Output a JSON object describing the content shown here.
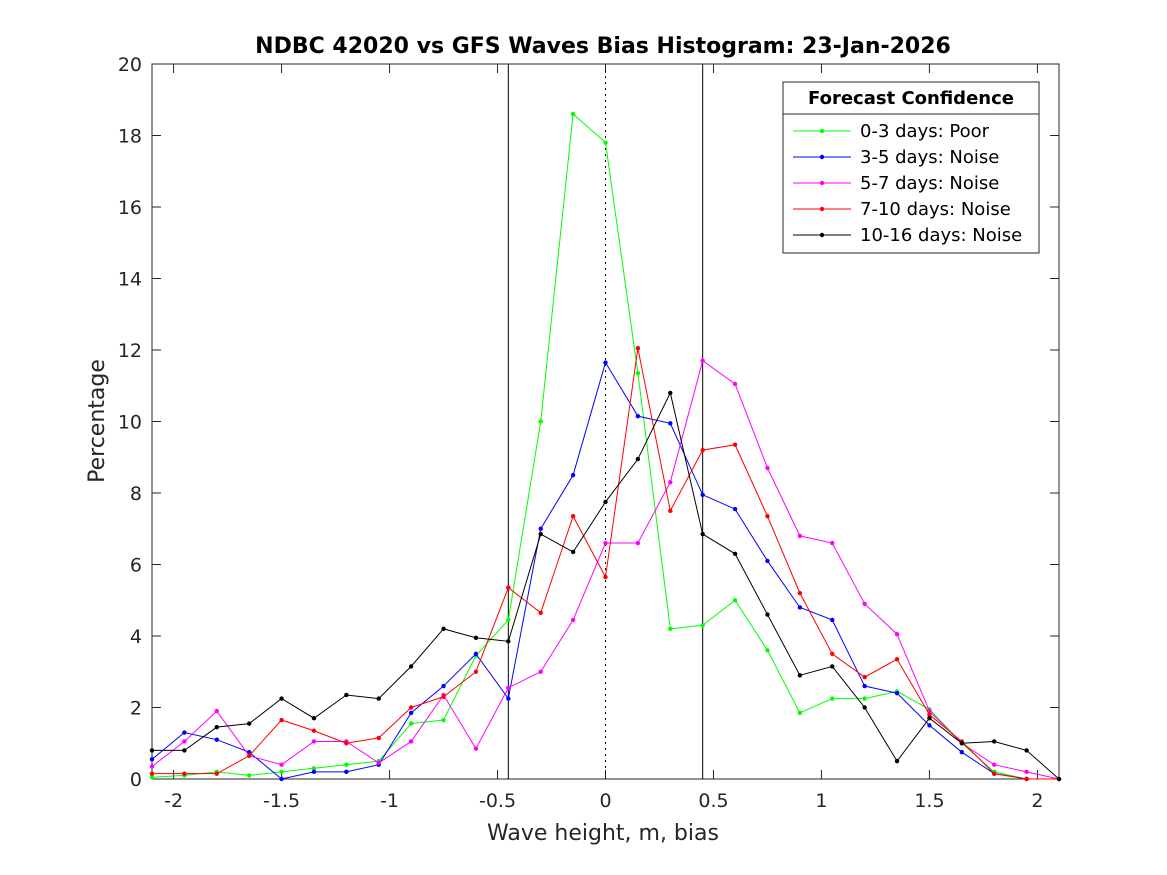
{
  "chart_data": {
    "type": "line",
    "title": "NDBC 42020 vs GFS Waves Bias Histogram: 23-Jan-2026",
    "xlabel": "Wave height, m, bias",
    "ylabel": "Percentage",
    "xlim": [
      -2.1,
      2.1
    ],
    "ylim": [
      0,
      20
    ],
    "xticks": [
      -2,
      -1.5,
      -1,
      -0.5,
      0,
      0.5,
      1,
      1.5,
      2
    ],
    "xtick_labels": [
      "-2",
      "-1.5",
      "-1",
      "-0.5",
      "0",
      "0.5",
      "1",
      "1.5",
      "2"
    ],
    "yticks": [
      0,
      2,
      4,
      6,
      8,
      10,
      12,
      14,
      16,
      18,
      20
    ],
    "ytick_labels": [
      "0",
      "2",
      "4",
      "6",
      "8",
      "10",
      "12",
      "14",
      "16",
      "18",
      "20"
    ],
    "vertical_lines": [
      {
        "x": -0.45,
        "style": "solid"
      },
      {
        "x": 0,
        "style": "dotted"
      },
      {
        "x": 0.45,
        "style": "solid"
      }
    ],
    "legend": {
      "title": "Forecast Confidence",
      "position": "top-right"
    },
    "x": [
      -2.1,
      -1.95,
      -1.8,
      -1.65,
      -1.5,
      -1.35,
      -1.2,
      -1.05,
      -0.9,
      -0.75,
      -0.6,
      -0.45,
      -0.3,
      -0.15,
      0,
      0.15,
      0.3,
      0.45,
      0.6,
      0.75,
      0.9,
      1.05,
      1.2,
      1.35,
      1.5,
      1.65,
      1.8,
      1.95,
      2.1
    ],
    "series": [
      {
        "name": "0-3 days: Poor",
        "color": "#00ff00",
        "values": [
          0.05,
          0.1,
          0.2,
          0.1,
          0.2,
          0.3,
          0.4,
          0.5,
          1.55,
          1.65,
          3.45,
          4.45,
          10.0,
          18.6,
          17.8,
          11.35,
          4.2,
          4.3,
          5.0,
          3.6,
          1.85,
          2.25,
          2.25,
          2.45,
          1.95,
          1.0,
          0.2,
          0.0,
          0.0
        ]
      },
      {
        "name": "3-5 days: Noise",
        "color": "#0000ff",
        "values": [
          0.55,
          1.3,
          1.1,
          0.75,
          0.0,
          0.2,
          0.2,
          0.4,
          1.85,
          2.6,
          3.5,
          2.25,
          7.0,
          8.5,
          11.65,
          10.15,
          9.95,
          7.95,
          7.55,
          6.1,
          4.8,
          4.45,
          2.6,
          2.4,
          1.5,
          0.75,
          0.15,
          0.0,
          0.0
        ]
      },
      {
        "name": "5-7 days: Noise",
        "color": "#ff00ff",
        "values": [
          0.35,
          1.05,
          1.9,
          0.65,
          0.4,
          1.05,
          1.05,
          0.45,
          1.05,
          2.35,
          0.85,
          2.55,
          3.0,
          4.45,
          6.6,
          6.6,
          8.3,
          11.7,
          11.05,
          8.7,
          6.8,
          6.6,
          4.9,
          4.05,
          1.9,
          1.0,
          0.4,
          0.2,
          0.0
        ]
      },
      {
        "name": "7-10 days: Noise",
        "color": "#ff0000",
        "values": [
          0.15,
          0.15,
          0.15,
          0.65,
          1.65,
          1.35,
          1.0,
          1.15,
          2.0,
          2.3,
          3.0,
          5.35,
          4.65,
          7.35,
          5.65,
          12.05,
          7.5,
          9.2,
          9.35,
          7.35,
          5.2,
          3.5,
          2.85,
          3.35,
          1.8,
          1.05,
          0.15,
          0.0,
          0.0
        ]
      },
      {
        "name": "10-16 days: Noise",
        "color": "#000000",
        "values": [
          0.8,
          0.8,
          1.45,
          1.55,
          2.25,
          1.7,
          2.35,
          2.25,
          3.15,
          4.2,
          3.95,
          3.85,
          6.85,
          6.35,
          7.75,
          8.95,
          10.8,
          6.85,
          6.3,
          4.6,
          2.9,
          3.15,
          2.0,
          0.5,
          1.7,
          1.0,
          1.05,
          0.8,
          0.0
        ]
      }
    ]
  }
}
